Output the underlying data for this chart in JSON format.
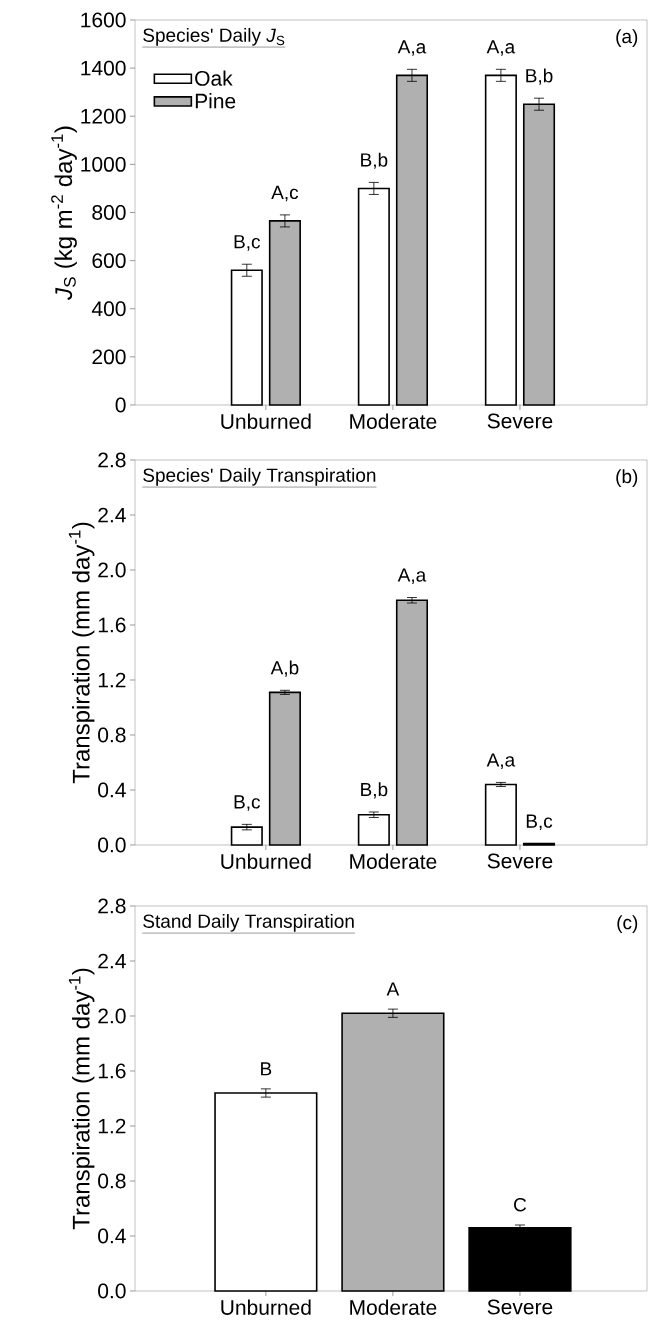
{
  "chart_data": [
    {
      "type": "bar",
      "title": "Species' Daily *J*$_{S}$",
      "ylabel": "*J*$_{S}$ (kg m$^{-2}$ day$^{-1}$)",
      "categories": [
        "Unburned",
        "Moderate",
        "Severe"
      ],
      "series": [
        {
          "name": "Oak",
          "color": "#ffffff",
          "values": [
            560,
            900,
            1370
          ],
          "errors": [
            25,
            25,
            25
          ]
        },
        {
          "name": "Pine",
          "color": "#b0b0b0",
          "values": [
            765,
            1370,
            1250
          ],
          "errors": [
            25,
            25,
            25
          ]
        }
      ],
      "ylim": [
        0,
        1600
      ],
      "yticks": [
        0,
        200,
        400,
        600,
        800,
        1000,
        1200,
        1400,
        1600
      ],
      "legend": "top left",
      "annotations": [
        "(a)",
        {
          "text": "B,c",
          "x": "Unburned",
          "y": 560
        },
        {
          "text": "A,c",
          "x": "Unburned",
          "y": 765
        },
        {
          "text": "B,b",
          "x": "Moderate",
          "y": 900
        },
        {
          "text": "A,a",
          "x": "Moderate",
          "y": 1370
        },
        {
          "text": "A,a",
          "x": "Severe",
          "y": 1370
        },
        {
          "text": "B,b",
          "x": "Severe",
          "y": 1250
        }
      ]
    },
    {
      "type": "bar",
      "title": "Species' Daily Transpiration",
      "ylabel": "Transpiration (mm day$^{-1}$)",
      "categories": [
        "Unburned",
        "Moderate",
        "Severe"
      ],
      "series": [
        {
          "color": "#ffffff",
          "values": [
            0.13,
            0.22,
            0.44
          ],
          "errors": [
            0.02,
            0.02,
            0.015
          ]
        },
        {
          "color": "#b0b0b0",
          "values": [
            1.11,
            1.78,
            0.01
          ],
          "errors": [
            0.015,
            0.02,
            null
          ]
        }
      ],
      "ylim": [
        0,
        2.8
      ],
      "yticks": [
        {
          "value": 0,
          "label": "0.0"
        },
        {
          "value": 0.4,
          "label": "0.4"
        },
        {
          "value": 0.8,
          "label": "0.8"
        },
        {
          "value": 1.2,
          "label": "1.2"
        },
        {
          "value": 1.6,
          "label": "1.6"
        },
        {
          "value": 2.0,
          "label": "2.0"
        },
        {
          "value": 2.4,
          "label": "2.4"
        },
        {
          "value": 2.8,
          "label": "2.8"
        }
      ],
      "annotations": [
        "(b)",
        {
          "text": "B,c",
          "x": "Unburned",
          "y": 0.13
        },
        {
          "text": "A,b",
          "x": "Unburned",
          "y": 1.11
        },
        {
          "text": "B,b",
          "x": "Moderate",
          "y": 0.22
        },
        {
          "text": "A,a",
          "x": "Moderate",
          "y": 1.78
        },
        {
          "text": "A,a",
          "x": "Severe",
          "y": 0.44
        },
        {
          "text": "B,c",
          "x": "Severe",
          "y": 0.01
        }
      ]
    },
    {
      "type": "bar",
      "title": "Stand Daily Transpiration",
      "ylabel": "Transpiration (mm day$^{-1}$)",
      "categories": [
        "Unburned",
        "Moderate",
        "Severe"
      ],
      "values": [
        1.44,
        2.02,
        0.46
      ],
      "errors": [
        0.03,
        0.03,
        0.02
      ],
      "colors": [
        "#ffffff",
        "#b0b0b0",
        "#000000"
      ],
      "ylim": [
        0,
        2.8
      ],
      "yticks": [
        {
          "value": 0,
          "label": "0.0"
        },
        {
          "value": 0.4,
          "label": "0.4"
        },
        {
          "value": 0.8,
          "label": "0.8"
        },
        {
          "value": 1.2,
          "label": "1.2"
        },
        {
          "value": 1.6,
          "label": "1.6"
        },
        {
          "value": 2.0,
          "label": "2.0"
        },
        {
          "value": 2.4,
          "label": "2.4"
        },
        {
          "value": 2.8,
          "label": "2.8"
        }
      ],
      "annotations": [
        "(c)",
        {
          "text": "B",
          "x": "Unburned",
          "y": 1.44
        },
        {
          "text": "A",
          "x": "Moderate",
          "y": 2.02
        },
        {
          "text": "C",
          "x": "Severe",
          "y": 0.46
        }
      ]
    }
  ]
}
